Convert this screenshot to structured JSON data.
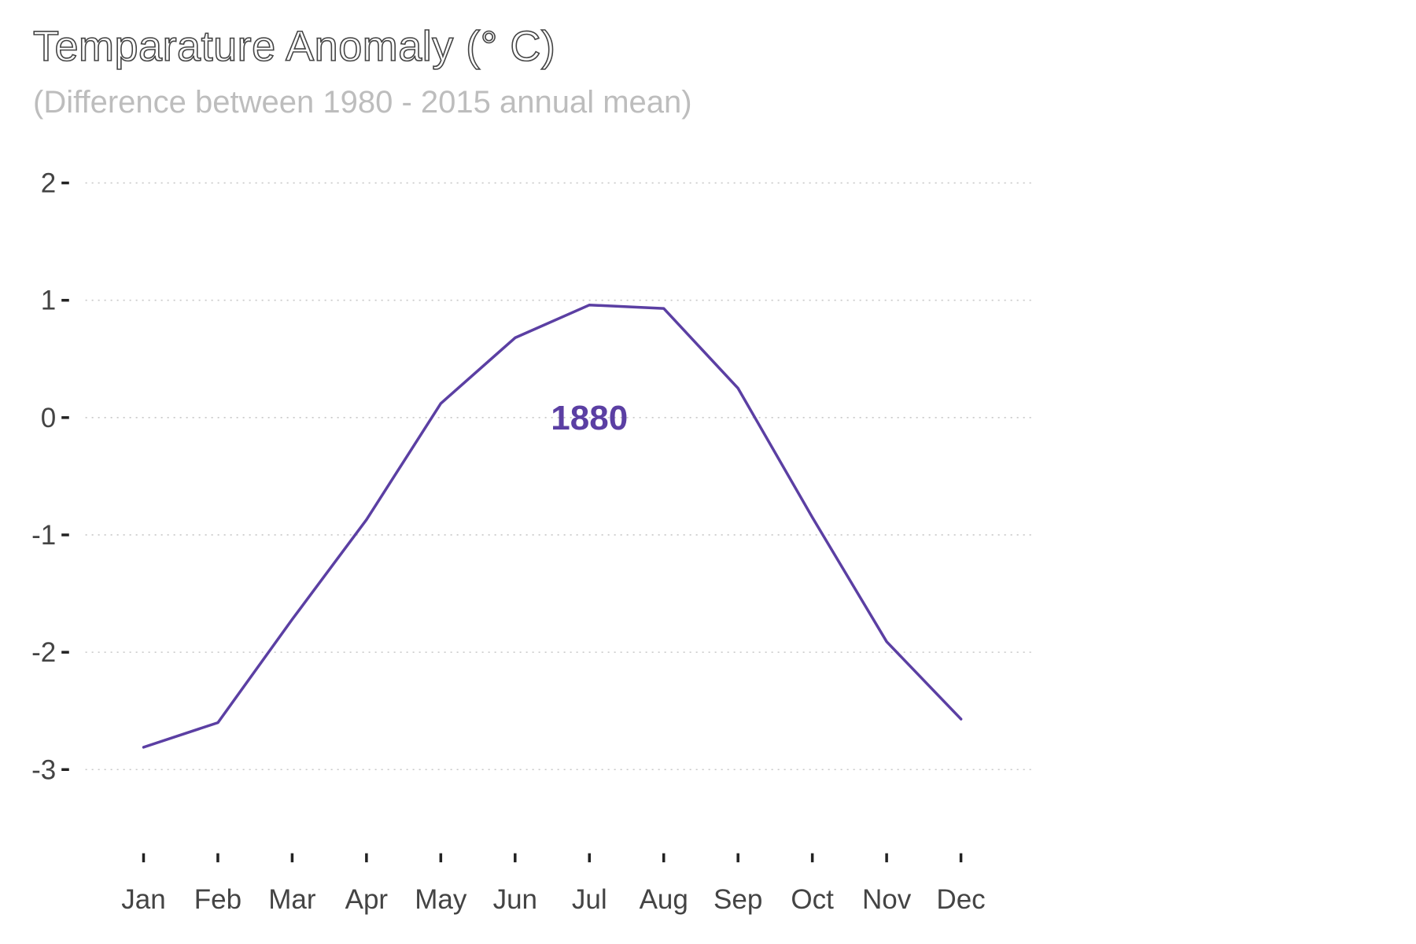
{
  "chart_data": {
    "type": "line",
    "title": "Temparature Anomaly (° C)",
    "subtitle": "(Difference between 1980 - 2015 annual mean)",
    "xlabel": "",
    "ylabel": "",
    "categories": [
      "Jan",
      "Feb",
      "Mar",
      "Apr",
      "May",
      "Jun",
      "Jul",
      "Aug",
      "Sep",
      "Oct",
      "Nov",
      "Dec"
    ],
    "series": [
      {
        "name": "1880",
        "color": "#5b3fa3",
        "values": [
          -2.81,
          -2.6,
          -1.72,
          -0.87,
          0.12,
          0.68,
          0.96,
          0.93,
          0.25,
          -0.85,
          -1.91,
          -2.57
        ]
      }
    ],
    "yticks": [
      2,
      1,
      0,
      -1,
      -2,
      -3
    ],
    "ylim": [
      -3.7,
      2.3
    ],
    "grid": "horizontal-dotted",
    "legend": "inline-label"
  }
}
